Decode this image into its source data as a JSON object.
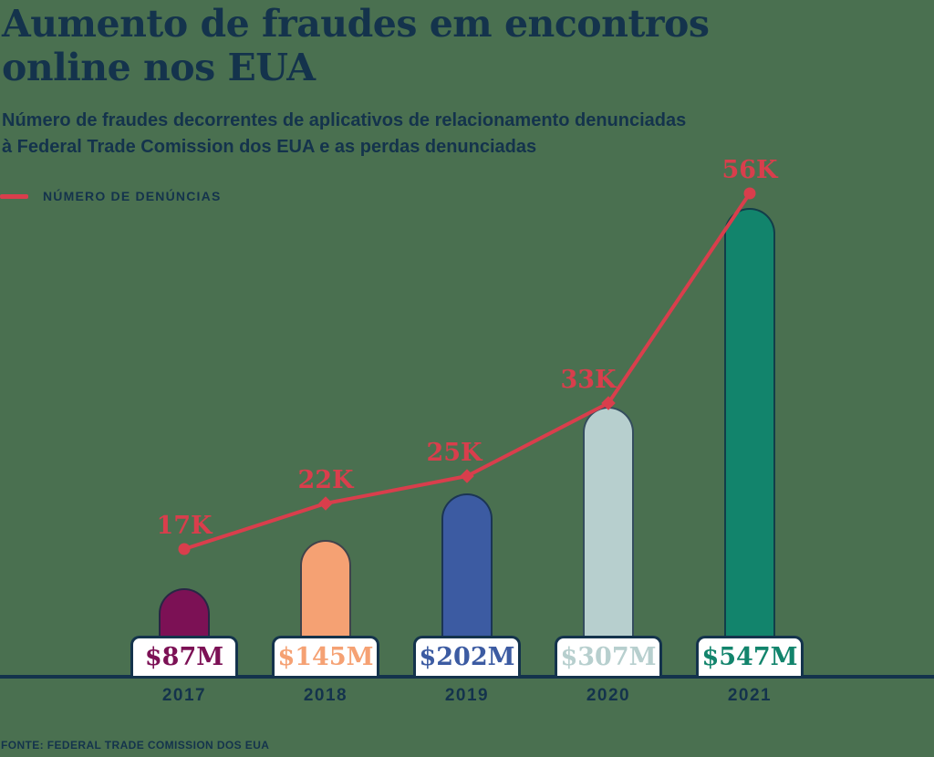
{
  "background_color": "#4A7050",
  "colors": {
    "navy": "#14334C",
    "red": "#D93E4C",
    "box_background": "#FFFFFF"
  },
  "header": {
    "title_line1": "Aumento de fraudes em encontros",
    "title_line2": "online nos EUA",
    "subtitle_line1": "Número de fraudes decorrentes de aplicativos de relacionamento denunciadas",
    "subtitle_line2": "à Federal Trade Comission dos EUA e as perdas denunciadas"
  },
  "legend": {
    "label": "NÚMERO DE DENÚNCIAS",
    "color": "#D93E4C"
  },
  "source": "FONTE: FEDERAL TRADE COMISSION DOS EUA",
  "chart_data": {
    "type": "bar+line",
    "title": "Aumento de fraudes em encontros online nos EUA",
    "categories": [
      "2017",
      "2018",
      "2019",
      "2020",
      "2021"
    ],
    "series": [
      {
        "name": "Perdas denunciadas",
        "type": "bar",
        "unit": "milhões de US$",
        "values": [
          87,
          145,
          202,
          307,
          547
        ],
        "labels": [
          "$87M",
          "$145M",
          "$202M",
          "$307M",
          "$547M"
        ],
        "colors": [
          "#7C1155",
          "#F5A173",
          "#3C5BA2",
          "#B7CFCE",
          "#12846C"
        ]
      },
      {
        "name": "Número de denúncias",
        "type": "line",
        "unit": "denúncias",
        "values": [
          17000,
          22000,
          25000,
          33000,
          56000
        ],
        "labels": [
          "17K",
          "22K",
          "25K",
          "33K",
          "56K"
        ],
        "color": "#D93E4C",
        "markers": [
          "circle",
          "diamond",
          "diamond",
          "diamond",
          "circle"
        ]
      }
    ],
    "xlabel": "",
    "ylabel": "",
    "grid": false,
    "legend_position": "top-left"
  }
}
